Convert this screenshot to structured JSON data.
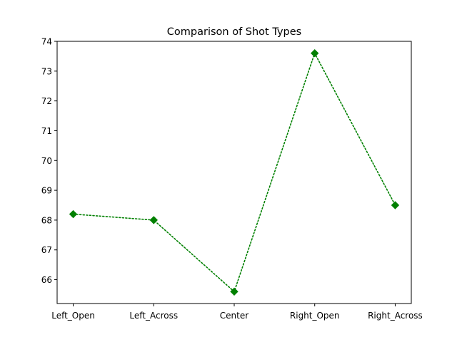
{
  "chart_data": {
    "type": "line",
    "title": "Comparison of Shot Types",
    "xlabel": "",
    "ylabel": "",
    "categories": [
      "Left_Open",
      "Left_Across",
      "Center",
      "Right_Open",
      "Right_Across"
    ],
    "series": [
      {
        "values": [
          68.2,
          68.0,
          65.6,
          73.6,
          68.5
        ],
        "color": "#008000",
        "line_style": "dotted",
        "marker": "diamond"
      }
    ],
    "ylim": [
      65.2,
      74.0
    ],
    "y_ticks": [
      66,
      67,
      68,
      69,
      70,
      71,
      72,
      73,
      74
    ],
    "grid": false,
    "legend": "none"
  }
}
